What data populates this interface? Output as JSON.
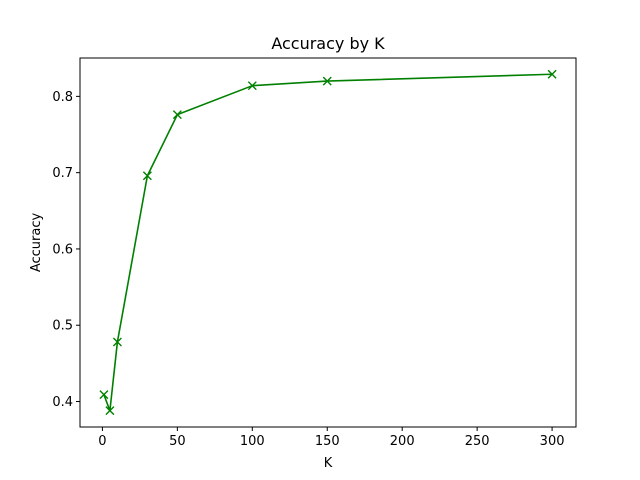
{
  "chart_data": {
    "type": "line",
    "title": "Accuracy by K",
    "xlabel": "K",
    "ylabel": "Accuracy",
    "x": [
      1,
      5,
      10,
      30,
      50,
      100,
      150,
      300
    ],
    "series": [
      {
        "values": [
          0.409,
          0.388,
          0.478,
          0.696,
          0.776,
          0.814,
          0.82,
          0.829
        ],
        "color": "#008000",
        "marker": "x"
      }
    ],
    "xlim": [
      -14.95,
      315.95
    ],
    "ylim": [
      0.3666,
      0.8503
    ],
    "xticks": [
      0,
      50,
      100,
      150,
      200,
      250,
      300
    ],
    "yticks": [
      0.4,
      0.5,
      0.6,
      0.7,
      0.8
    ],
    "grid": false,
    "legend": "none"
  }
}
